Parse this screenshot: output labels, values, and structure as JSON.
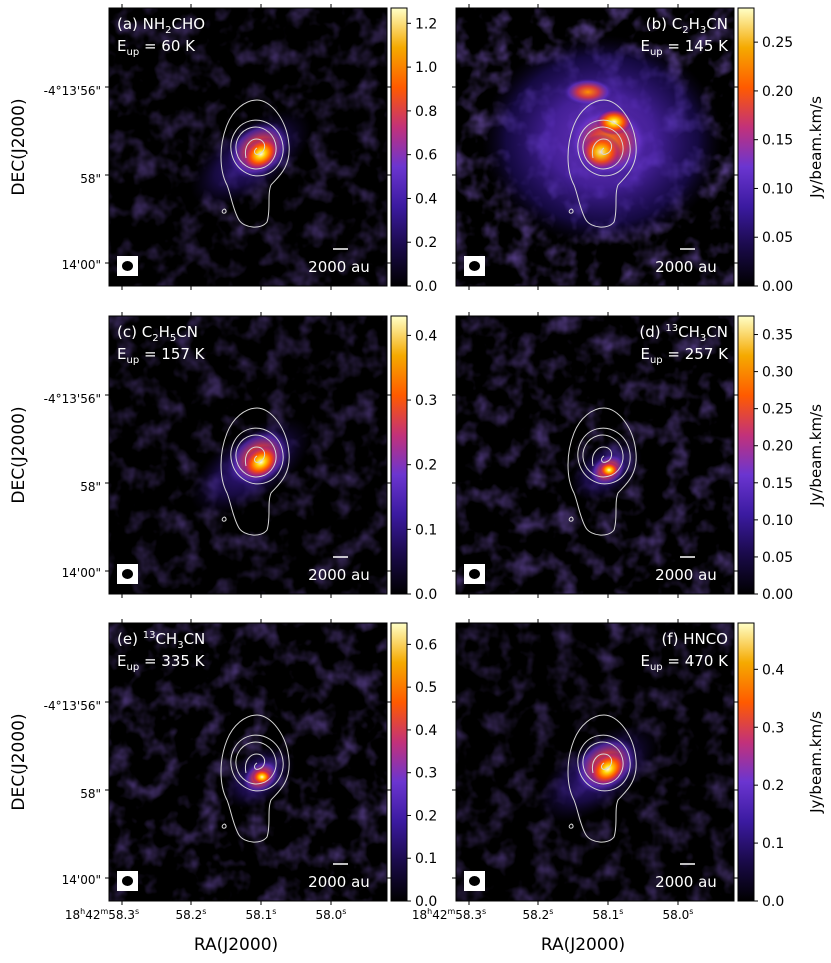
{
  "figure": {
    "y_axis_label": "DEC(J2000)",
    "x_axis_label": "RA(J2000)",
    "colorbar_label": "Jy/beam.km/s",
    "y_ticks": [
      "-4°13'56\"",
      "58\"",
      "14'00\""
    ],
    "x_ticks": [
      {
        "main": "18",
        "sup1": "h",
        "mid": "42",
        "sup2": "m",
        "tail": "58.3",
        "sup3": "s"
      },
      {
        "main": "58.2",
        "sup3": "s"
      },
      {
        "main": "58.1",
        "sup3": "s"
      },
      {
        "main": "58.0",
        "sup3": "s"
      }
    ],
    "scale_bar_label": "2000 au",
    "colormap": [
      "#000000",
      "#1a0a4a",
      "#3b1aa0",
      "#6b35d0",
      "#c2317a",
      "#ff5a00",
      "#f5a900",
      "#ffffc8"
    ],
    "contour_color": "#d8d8d8"
  },
  "chart_data": [
    {
      "type": "heatmap",
      "panel": "a",
      "label_prefix": "(a) NH",
      "label_sub": "2",
      "label_suffix": "CHO",
      "eup_text": "= 60 K",
      "eup_value_K": 60,
      "label_align": "left",
      "colorbar_ticks": [
        "0.0",
        "0.2",
        "0.4",
        "0.6",
        "0.8",
        "1.0",
        "1.2"
      ],
      "colorbar_range": [
        0.0,
        1.27
      ],
      "peak_value": 1.2,
      "emission": "compact",
      "show_cbar_label": false
    },
    {
      "type": "heatmap",
      "panel": "b",
      "label_prefix": "(b) C",
      "label_sub": "2",
      "label_suffix": "H",
      "label_sub2": "3",
      "label_suffix2": "CN",
      "eup_text": "= 145 K",
      "eup_value_K": 145,
      "label_align": "right",
      "colorbar_ticks": [
        "0.00",
        "0.05",
        "0.10",
        "0.15",
        "0.20",
        "0.25"
      ],
      "colorbar_range": [
        0.0,
        0.285
      ],
      "peak_value": 0.27,
      "emission": "extended",
      "show_cbar_label": true
    },
    {
      "type": "heatmap",
      "panel": "c",
      "label_prefix": "(c) C",
      "label_sub": "2",
      "label_suffix": "H",
      "label_sub2": "5",
      "label_suffix2": "CN",
      "eup_text": "= 157 K",
      "eup_value_K": 157,
      "label_align": "left",
      "colorbar_ticks": [
        "0.0",
        "0.1",
        "0.2",
        "0.3",
        "0.4"
      ],
      "colorbar_range": [
        0.0,
        0.43
      ],
      "peak_value": 0.42,
      "emission": "compact",
      "show_cbar_label": false
    },
    {
      "type": "heatmap",
      "panel": "d",
      "label_prefix": "(d) ",
      "label_sup": "13",
      "label_suffix": "CH",
      "label_sub2": "3",
      "label_suffix2": "CN",
      "eup_text": "= 257 K",
      "eup_value_K": 257,
      "label_align": "right",
      "colorbar_ticks": [
        "0.00",
        "0.05",
        "0.10",
        "0.15",
        "0.20",
        "0.25",
        "0.30",
        "0.35"
      ],
      "colorbar_range": [
        0.0,
        0.375
      ],
      "peak_value": 0.36,
      "emission": "weak",
      "show_cbar_label": true
    },
    {
      "type": "heatmap",
      "panel": "e",
      "label_prefix": "(e) ",
      "label_sup": "13",
      "label_suffix": "CH",
      "label_sub2": "3",
      "label_suffix2": "CN",
      "eup_text": "= 335 K",
      "eup_value_K": 335,
      "label_align": "left",
      "colorbar_ticks": [
        "0.0",
        "0.1",
        "0.2",
        "0.3",
        "0.4",
        "0.5",
        "0.6"
      ],
      "colorbar_range": [
        0.0,
        0.65
      ],
      "peak_value": 0.62,
      "emission": "weak",
      "show_cbar_label": false
    },
    {
      "type": "heatmap",
      "panel": "f",
      "label_prefix": "(f) HNCO",
      "eup_text": "= 470 K",
      "eup_value_K": 470,
      "label_align": "right",
      "colorbar_ticks": [
        "0.0",
        "0.1",
        "0.2",
        "0.3",
        "0.4"
      ],
      "colorbar_range": [
        0.0,
        0.48
      ],
      "peak_value": 0.46,
      "emission": "compact",
      "show_cbar_label": true
    }
  ]
}
